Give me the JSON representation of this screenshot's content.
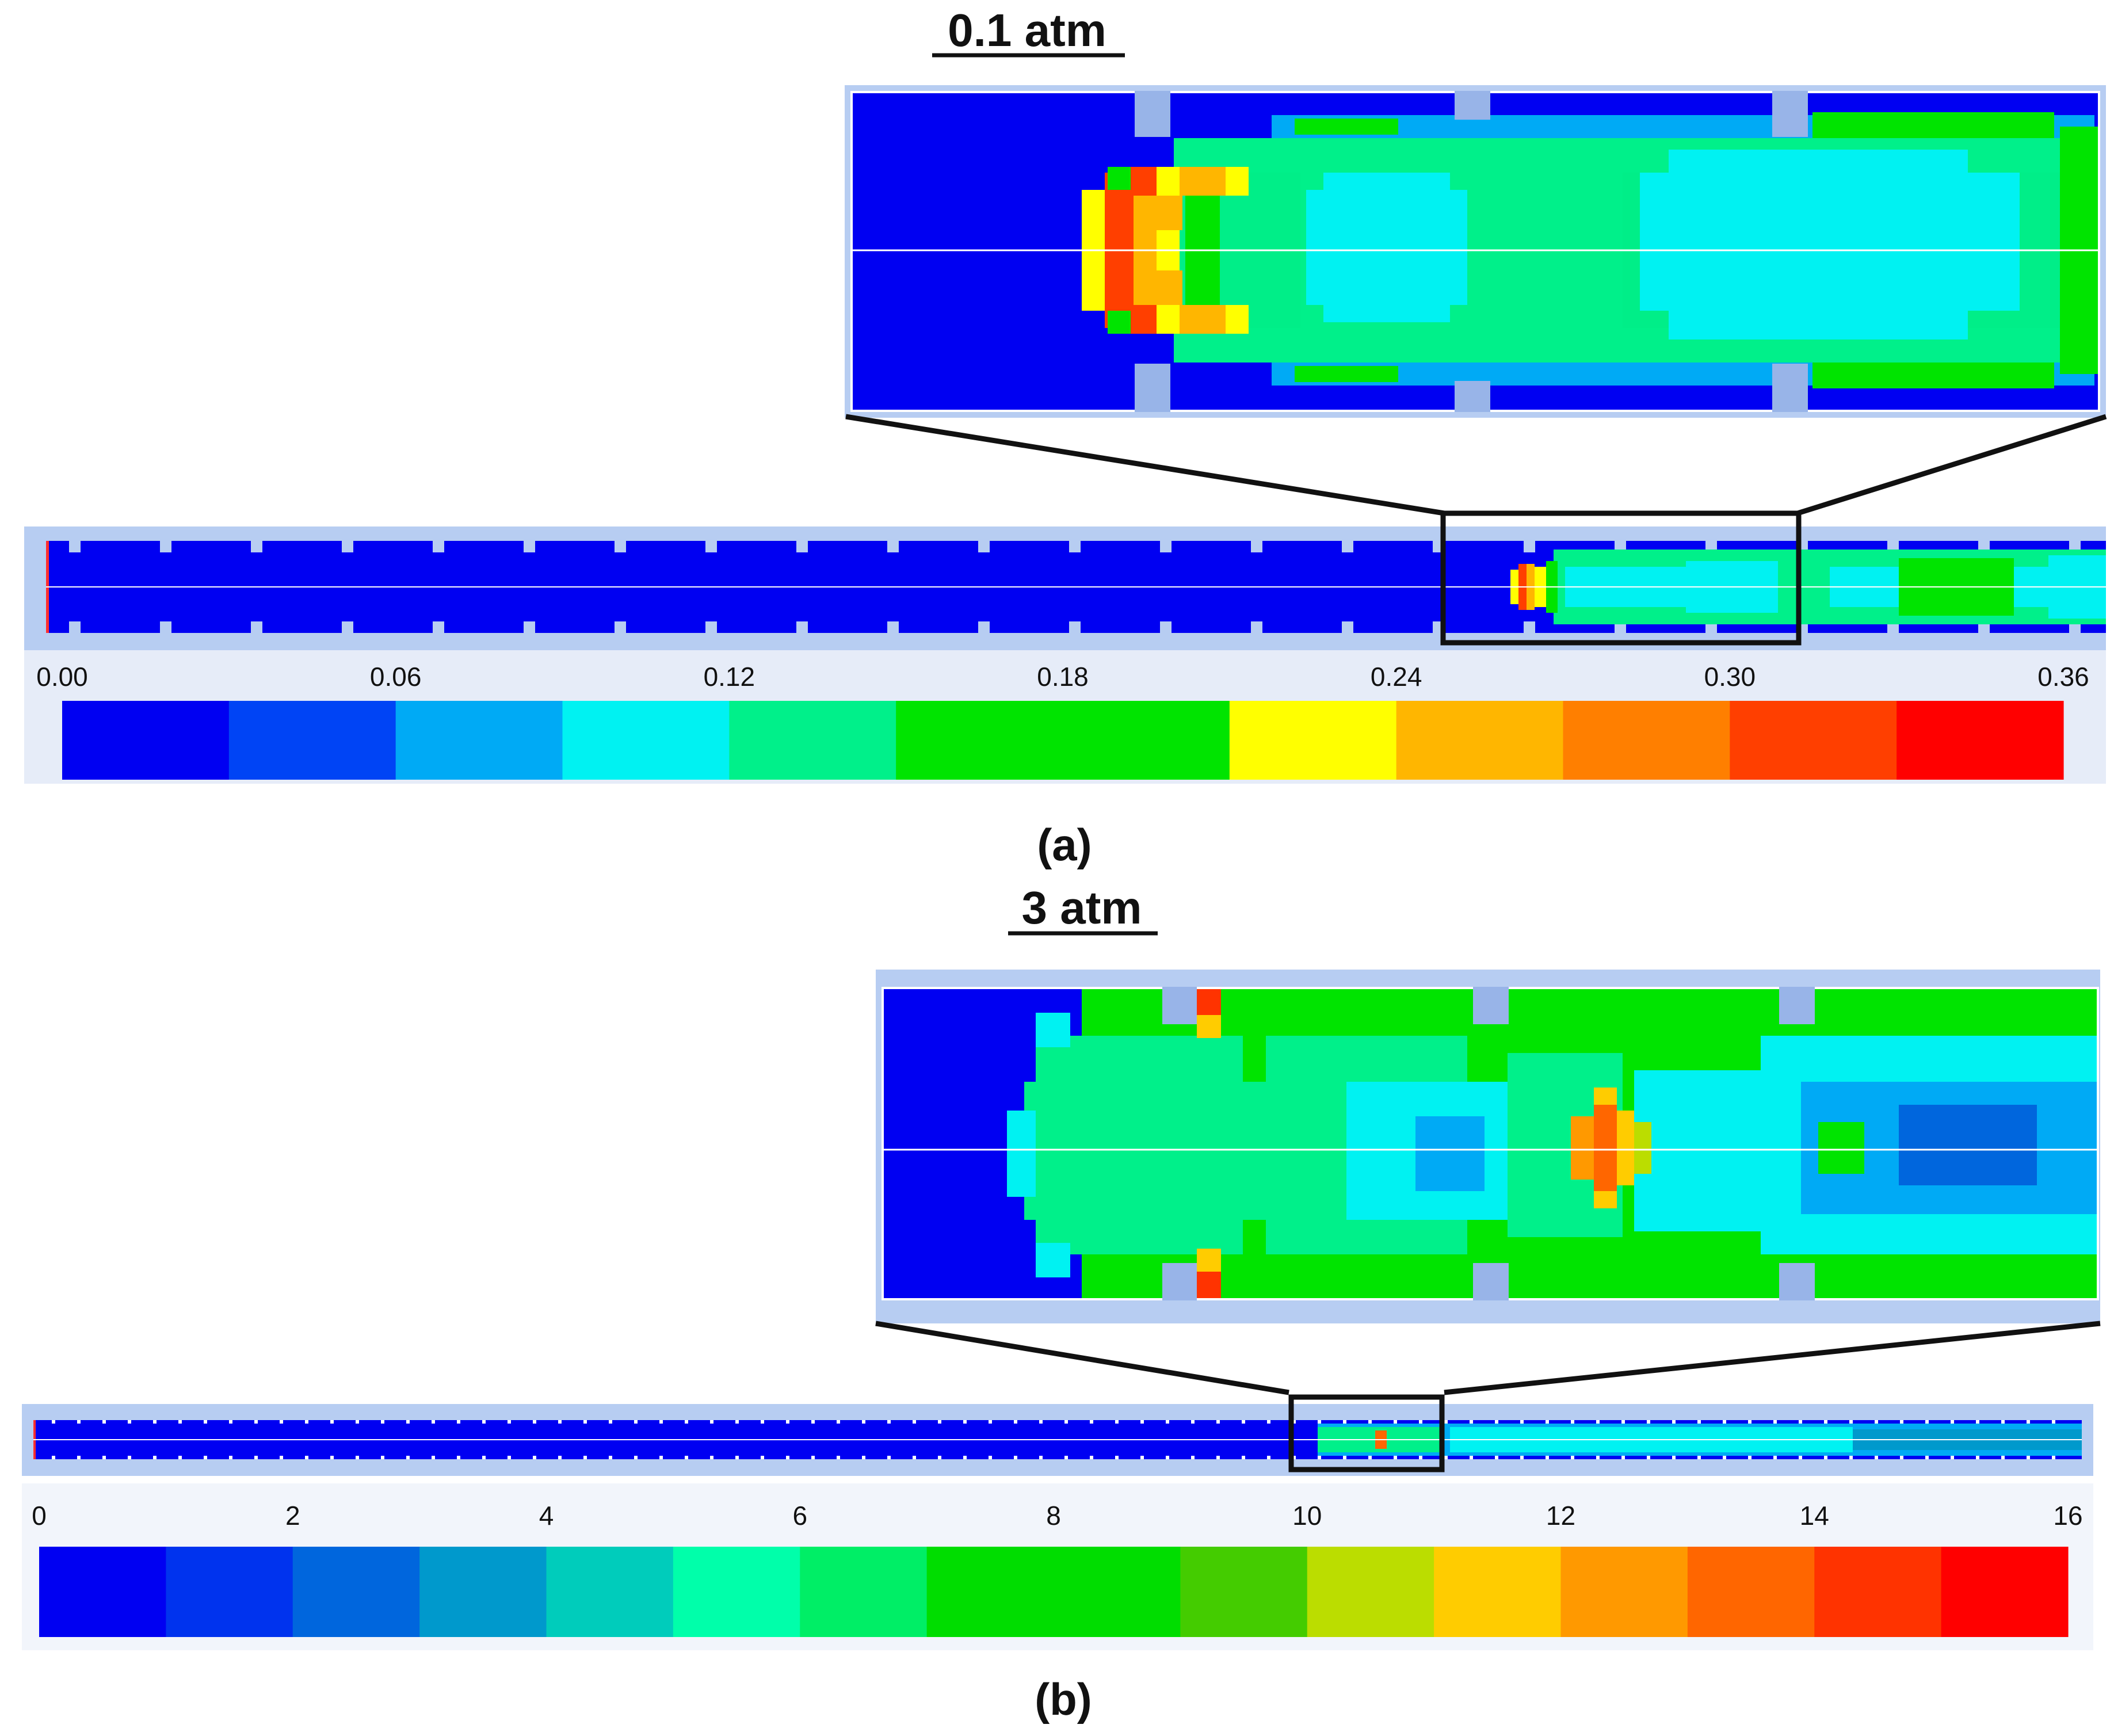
{
  "panels": [
    {
      "id": "a",
      "pressure_label": "0.1 atm",
      "caption": "(a)",
      "colorbar": {
        "tick_labels": [
          "0.00",
          "0.06",
          "0.12",
          "0.18",
          "0.24",
          "0.30",
          "0.36"
        ],
        "colors": [
          "#0000f2",
          "#0044f5",
          "#00aaf5",
          "#00f2f2",
          "#00f08a",
          "#00e400",
          "#00e400",
          "#ffff00",
          "#ffb600",
          "#ff7f00",
          "#ff3f00",
          "#ff0000"
        ]
      },
      "colors": {
        "background": "#0000f2",
        "wall": "#98b4e8",
        "frame": "#b7cdf2",
        "axis": "#ffffff"
      }
    },
    {
      "id": "b",
      "pressure_label": "3 atm",
      "caption": "(b)",
      "colorbar": {
        "tick_labels": [
          "0",
          "2",
          "4",
          "6",
          "8",
          "10",
          "12",
          "14",
          "16"
        ],
        "colors": [
          "#0000f2",
          "#0033ee",
          "#0066dd",
          "#0099cc",
          "#00ccbb",
          "#00ffaa",
          "#00ee66",
          "#00dd00",
          "#00dd00",
          "#44cc00",
          "#bbdd00",
          "#ffcc00",
          "#ff9900",
          "#ff6600",
          "#ff3300",
          "#ff0000"
        ]
      },
      "colors": {
        "background": "#0000f2",
        "wall": "#98b4e8",
        "frame": "#b7cdf2",
        "axis": "#ffffff"
      }
    }
  ]
}
